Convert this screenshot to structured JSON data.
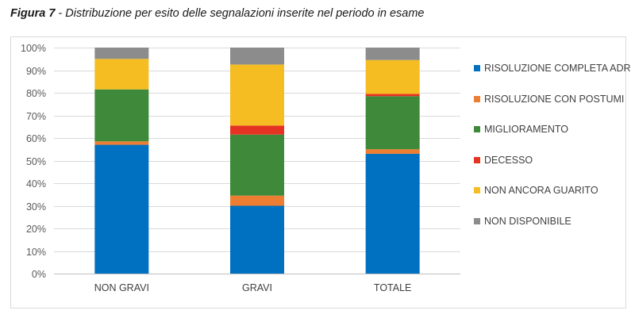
{
  "caption": {
    "figure_label": "Figura 7",
    "text": " - Distribuzione per esito delle segnalazioni inserite nel periodo in esame"
  },
  "chart_data": {
    "type": "bar",
    "stacked": true,
    "categories": [
      "NON GRAVI",
      "GRAVI",
      "TOTALE"
    ],
    "series": [
      {
        "name": "RISOLUZIONE COMPLETA ADR",
        "color": "#0070c0",
        "values": [
          57,
          30,
          53
        ]
      },
      {
        "name": "RISOLUZIONE CON POSTUMI",
        "color": "#ed7d31",
        "values": [
          1.5,
          4.5,
          2
        ]
      },
      {
        "name": "MIGLIORAMENTO",
        "color": "#3e8a3a",
        "values": [
          23,
          27,
          23.5
        ]
      },
      {
        "name": "DECESSO",
        "color": "#e53323",
        "values": [
          0,
          4,
          1
        ]
      },
      {
        "name": "NON ANCORA GUARITO",
        "color": "#f5bd22",
        "values": [
          13.5,
          27,
          15
        ]
      },
      {
        "name": "NON DISPONIBILE",
        "color": "#8c8c8c",
        "values": [
          5,
          7.5,
          5.5
        ]
      }
    ],
    "ylim": [
      0,
      100
    ],
    "yticks": [
      "0%",
      "10%",
      "20%",
      "30%",
      "40%",
      "50%",
      "60%",
      "70%",
      "80%",
      "90%",
      "100%"
    ],
    "grid": true,
    "legend_position": "right"
  }
}
